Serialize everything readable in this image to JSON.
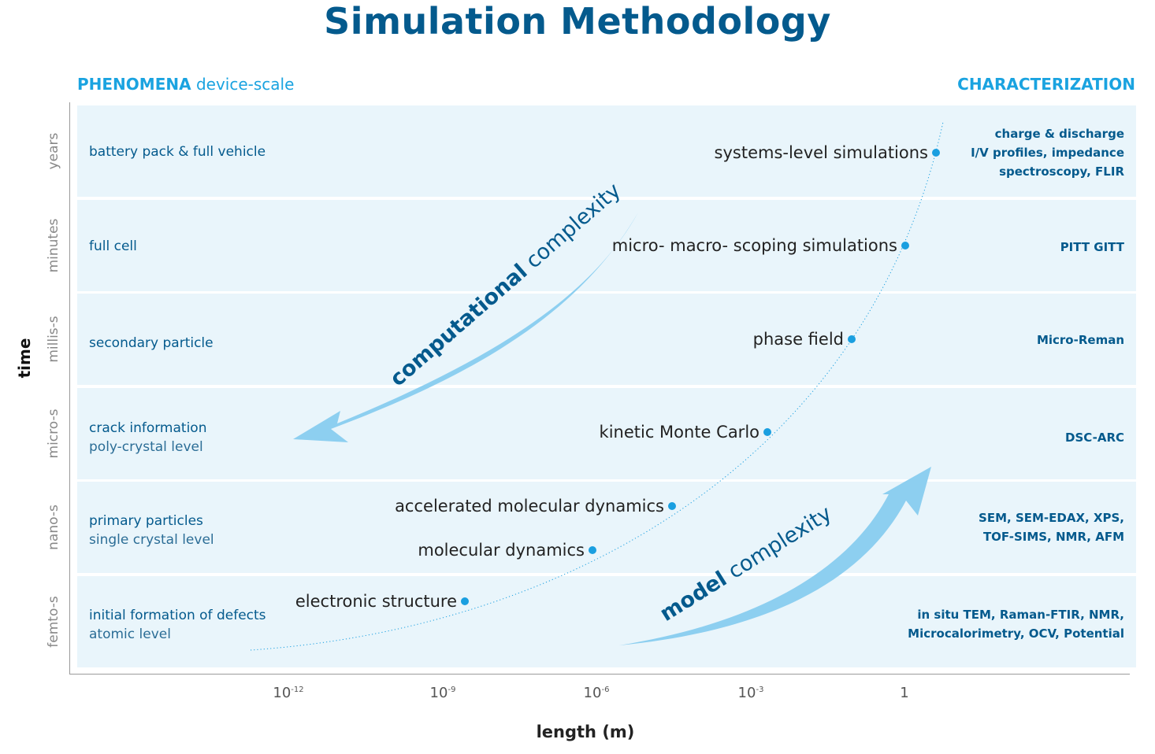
{
  "title": "Simulation Methodology",
  "header": {
    "left_bold": "PHENOMENA",
    "left_rest": "device-scale",
    "right": "CHARACTERIZATION"
  },
  "axes": {
    "y_label": "time",
    "x_label": "length (m)",
    "x_ticks": [
      {
        "base": "10",
        "exp": "-12"
      },
      {
        "base": "10",
        "exp": "-9"
      },
      {
        "base": "10",
        "exp": "-6"
      },
      {
        "base": "10",
        "exp": "-3"
      },
      {
        "base": "1",
        "exp": ""
      }
    ]
  },
  "rows": [
    {
      "time": "years",
      "phenomenon": "battery pack & full vehicle",
      "detail": "",
      "characterization": [
        "charge & discharge",
        "I/V profiles, impedance",
        "spectroscopy, FLIR"
      ]
    },
    {
      "time": "minutes",
      "phenomenon": "full cell",
      "detail": "",
      "characterization": [
        "PITT GITT"
      ]
    },
    {
      "time": "millis-s",
      "phenomenon": "secondary  particle",
      "detail": "",
      "characterization": [
        "Micro-Reman"
      ]
    },
    {
      "time": "micro-s",
      "phenomenon": "crack information",
      "detail": "poly-crystal level",
      "characterization": [
        "DSC-ARC"
      ]
    },
    {
      "time": "nano-s",
      "phenomenon": "primary particles",
      "detail": "single crystal level",
      "characterization": [
        "SEM, SEM-EDAX, XPS,",
        "TOF-SIMS, NMR, AFM"
      ]
    },
    {
      "time": "femto-s",
      "phenomenon": "initial formation of defects",
      "detail": "atomic level",
      "characterization": [
        "in situ TEM, Raman-FTIR, NMR,",
        "Microcalorimetry, OCV, Potential"
      ]
    }
  ],
  "methods": [
    {
      "label": "systems-level simulations"
    },
    {
      "label": "micro- macro- scoping simulations"
    },
    {
      "label": "phase field"
    },
    {
      "label": "kinetic Monte Carlo"
    },
    {
      "label": "accelerated molecular dynamics"
    },
    {
      "label": "molecular dynamics"
    },
    {
      "label": "electronic structure"
    }
  ],
  "arrows": {
    "computational": {
      "bold": "computational",
      "rest": " complexity"
    },
    "model": {
      "bold": "model",
      "rest": " complexity"
    }
  },
  "colors": {
    "title": "#045a8d",
    "accent": "#1aa3e0",
    "band": "#e9f5fb",
    "arrow": "#8dcff0",
    "dot": "#1a9fe0"
  }
}
